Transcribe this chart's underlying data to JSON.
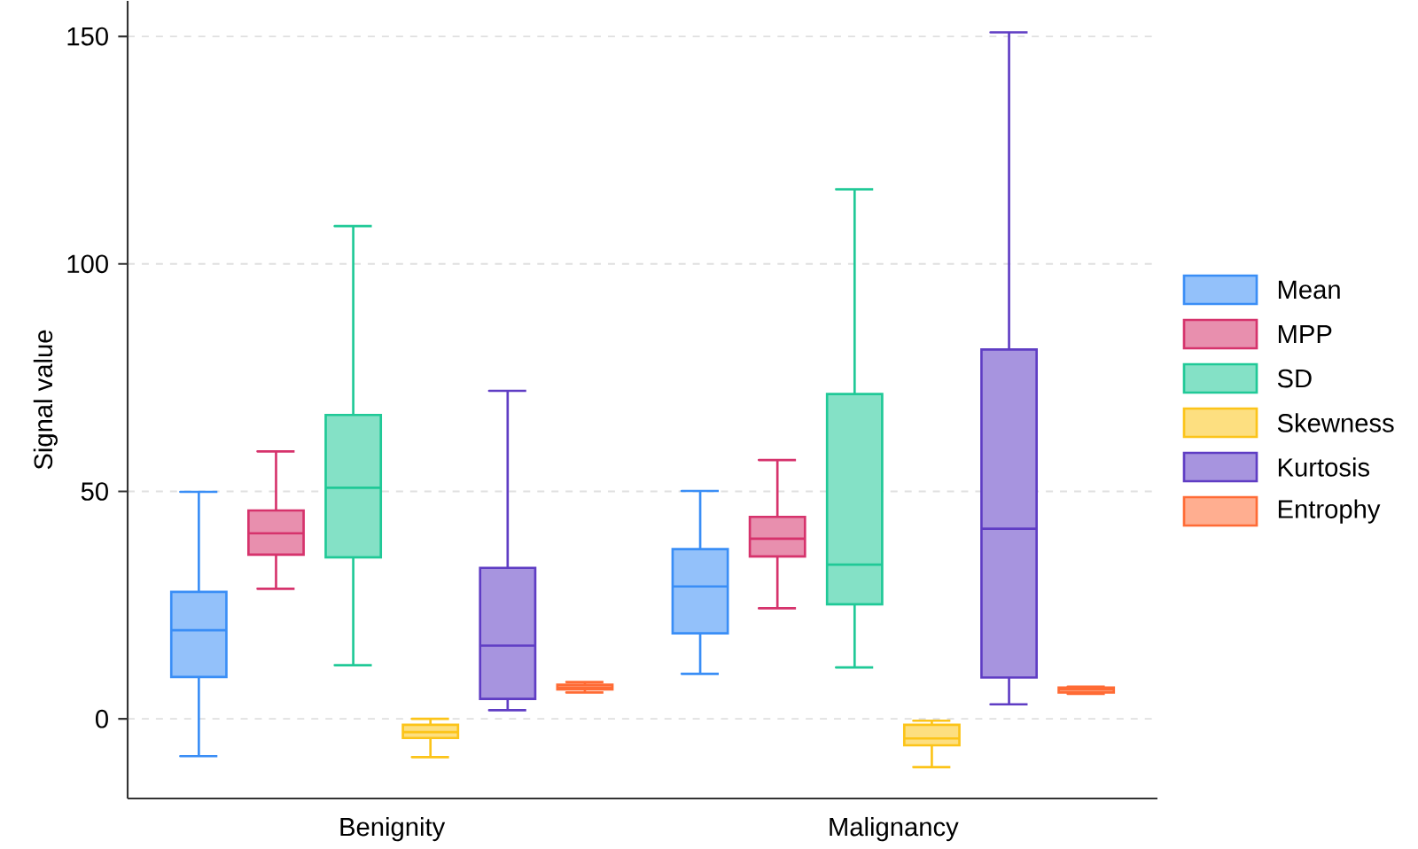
{
  "chart_data": {
    "type": "box",
    "ylabel": "Signal value",
    "categories": [
      "Benignity",
      "Malignancy"
    ],
    "ylim": [
      -17.5,
      157.8
    ],
    "yticks": [
      0,
      50,
      100,
      150
    ],
    "grid": "y",
    "legend": "right",
    "series": [
      {
        "name": "Mean",
        "color": "#3a8ef6",
        "boxes": [
          {
            "low": -8.2,
            "q1": 9.2,
            "median": 19.5,
            "q3": 27.9,
            "high": 49.9
          },
          {
            "low": 9.9,
            "q1": 18.8,
            "median": 29.1,
            "q3": 37.3,
            "high": 50.1
          }
        ]
      },
      {
        "name": "MPP",
        "color": "#d6336c",
        "boxes": [
          {
            "low": 28.6,
            "q1": 36.1,
            "median": 40.8,
            "q3": 45.8,
            "high": 58.8
          },
          {
            "low": 24.3,
            "q1": 35.7,
            "median": 39.6,
            "q3": 44.4,
            "high": 56.9
          }
        ]
      },
      {
        "name": "SD",
        "color": "#20c997",
        "boxes": [
          {
            "low": 11.8,
            "q1": 35.5,
            "median": 50.8,
            "q3": 66.8,
            "high": 108.3
          },
          {
            "low": 11.3,
            "q1": 25.2,
            "median": 33.9,
            "q3": 71.4,
            "high": 116.4
          }
        ]
      },
      {
        "name": "Skewness",
        "color": "#fcc419",
        "boxes": [
          {
            "low": -8.4,
            "q1": -4.2,
            "median": -2.9,
            "q3": -1.3,
            "high": 0
          },
          {
            "low": -10.6,
            "q1": -5.8,
            "median": -4.3,
            "q3": -1.3,
            "high": -0.4
          }
        ]
      },
      {
        "name": "Kurtosis",
        "color": "#5f3dc4",
        "boxes": [
          {
            "low": 1.9,
            "q1": 4.4,
            "median": 16.1,
            "q3": 33.2,
            "high": 72.1
          },
          {
            "low": 3.2,
            "q1": 9.1,
            "median": 41.8,
            "q3": 81.2,
            "high": 150.9
          }
        ]
      },
      {
        "name": "Entrophy",
        "color": "#ff6b35",
        "boxes": [
          {
            "low": 5.8,
            "q1": 6.5,
            "median": 6.9,
            "q3": 7.5,
            "high": 8.1
          },
          {
            "low": 5.5,
            "q1": 5.8,
            "median": 6.5,
            "q3": 6.9,
            "high": 7.1
          }
        ]
      }
    ]
  }
}
